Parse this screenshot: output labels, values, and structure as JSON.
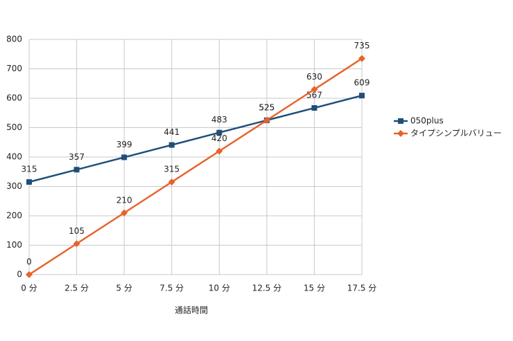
{
  "chart_data": {
    "type": "line",
    "x_label": "通話時間",
    "categories": [
      "0 分",
      "2.5 分",
      "5 分",
      "7.5 分",
      "10 分",
      "12.5 分",
      "15 分",
      "17.5 分"
    ],
    "series": [
      {
        "name": "050plus",
        "color": "#1f4e79",
        "marker": "square",
        "values": [
          315,
          357,
          399,
          441,
          483,
          525,
          567,
          609
        ]
      },
      {
        "name": "タイプシンプルバリュー",
        "color": "#e8622a",
        "marker": "diamond",
        "values": [
          0,
          105,
          210,
          315,
          420,
          525,
          630,
          735
        ]
      }
    ],
    "ylim": [
      0,
      800
    ],
    "yticks": [
      0,
      100,
      200,
      300,
      400,
      500,
      600,
      700,
      800
    ],
    "grid": true,
    "legend": "right"
  }
}
